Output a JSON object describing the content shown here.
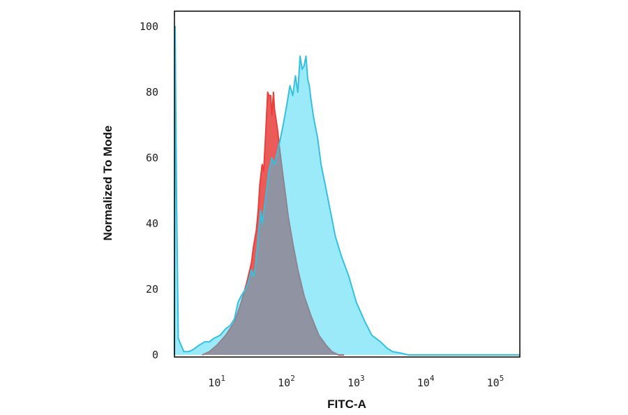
{
  "chart_data": {
    "type": "area",
    "title": "",
    "xlabel": "FITC-A",
    "ylabel": "Normalized To Mode",
    "x_scale": "log",
    "xlim": [
      2.2,
      200000
    ],
    "ylim": [
      0,
      100
    ],
    "grid": false,
    "x_ticks": [
      {
        "value": 10,
        "base": "10",
        "exp": "1"
      },
      {
        "value": 100,
        "base": "10",
        "exp": "2"
      },
      {
        "value": 1000,
        "base": "10",
        "exp": "3"
      },
      {
        "value": 10000,
        "base": "10",
        "exp": "4"
      },
      {
        "value": 100000,
        "base": "10",
        "exp": "5"
      }
    ],
    "y_ticks": [
      {
        "value": 0,
        "label": "0"
      },
      {
        "value": 20,
        "label": "20"
      },
      {
        "value": 40,
        "label": "40"
      },
      {
        "value": 60,
        "label": "60"
      },
      {
        "value": 80,
        "label": "80"
      },
      {
        "value": 100,
        "label": "100"
      }
    ],
    "series": [
      {
        "color": "#e8403c",
        "fill": "rgba(232,64,60,0.85)",
        "x": [
          5.5,
          7,
          9,
          12,
          16,
          20,
          24,
          28,
          30,
          33,
          35,
          37,
          40,
          42,
          45,
          48,
          50,
          53,
          55,
          58,
          60,
          63,
          67,
          72,
          78,
          85,
          95,
          110,
          130,
          160,
          200,
          260,
          330,
          400,
          500,
          600
        ],
        "y": [
          0,
          1,
          3,
          6,
          10,
          16,
          22,
          28,
          33,
          38,
          44,
          52,
          58,
          56,
          68,
          80,
          79,
          79,
          73,
          80,
          75,
          72,
          68,
          62,
          56,
          50,
          42,
          34,
          26,
          18,
          12,
          6,
          3,
          1,
          0,
          0
        ]
      },
      {
        "color": "#35c0e0",
        "fill": "rgba(40,210,245,0.47)",
        "x": [
          2.2,
          2.25,
          2.35,
          2.5,
          3,
          3.5,
          4,
          5,
          6,
          7,
          8,
          10,
          12,
          14,
          16,
          18,
          20,
          23,
          25,
          28,
          30,
          32,
          35,
          38,
          40,
          45,
          50,
          55,
          60,
          70,
          80,
          90,
          100,
          110,
          120,
          130,
          140,
          150,
          160,
          170,
          180,
          190,
          200,
          220,
          250,
          280,
          320,
          380,
          450,
          550,
          700,
          900,
          1200,
          1500,
          2000,
          2500,
          3000,
          4000,
          5000,
          200000
        ],
        "y": [
          0,
          100,
          50,
          5,
          1,
          1,
          1.5,
          3,
          4,
          4,
          5,
          6,
          8,
          9,
          11,
          16,
          18,
          20,
          22,
          26,
          24,
          27,
          36,
          44,
          40,
          48,
          56,
          60,
          58,
          64,
          70,
          76,
          82,
          79,
          85,
          80,
          91,
          87,
          88,
          91,
          84,
          82,
          78,
          72,
          66,
          58,
          52,
          44,
          36,
          30,
          24,
          16,
          10,
          6,
          4,
          2,
          1,
          0.5,
          0,
          0
        ]
      }
    ]
  }
}
